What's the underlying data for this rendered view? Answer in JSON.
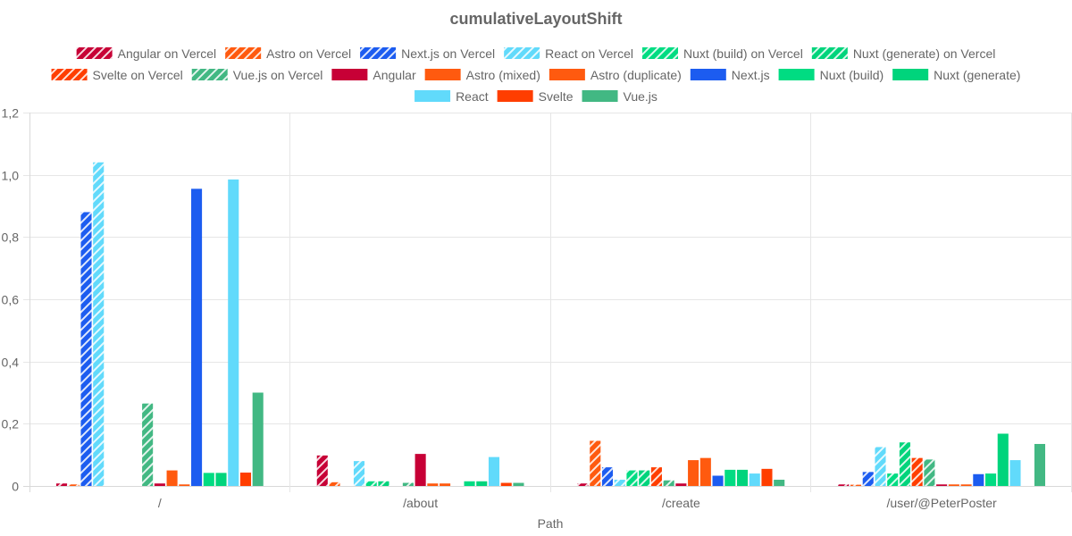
{
  "chart_data": {
    "type": "bar",
    "title": "cumulativeLayoutShift",
    "xlabel": "Path",
    "ylabel": "",
    "ylim": [
      0,
      1.2
    ],
    "yticks": [
      "0",
      "0,2",
      "0,4",
      "0,6",
      "0,8",
      "1,0",
      "1,2"
    ],
    "grid": true,
    "legend_position": "top",
    "categories": [
      "/",
      "/about",
      "/create",
      "/user/@PeterPoster"
    ],
    "series": [
      {
        "name": "Angular on Vercel",
        "color": "#c70036",
        "hatched": true,
        "values": [
          0.008,
          0.098,
          0.008,
          0.005
        ]
      },
      {
        "name": "Astro on Vercel",
        "color": "#ff5a0f",
        "hatched": true,
        "values": [
          0.005,
          0.012,
          0.145,
          0.004
        ]
      },
      {
        "name": "Next.js on Vercel",
        "color": "#1c5cf0",
        "hatched": true,
        "values": [
          0.88,
          0.0,
          0.06,
          0.045
        ]
      },
      {
        "name": "React on Vercel",
        "color": "#61dafb",
        "hatched": true,
        "values": [
          1.04,
          0.08,
          0.02,
          0.125
        ]
      },
      {
        "name": "Nuxt (build) on Vercel",
        "color": "#00dc82",
        "hatched": true,
        "values": [
          0.0,
          0.015,
          0.05,
          0.04
        ]
      },
      {
        "name": "Nuxt (generate) on Vercel",
        "color": "#00d47c",
        "hatched": true,
        "values": [
          0.0,
          0.015,
          0.05,
          0.14
        ]
      },
      {
        "name": "Svelte on Vercel",
        "color": "#ff3e00",
        "hatched": true,
        "values": [
          0.0,
          0.0,
          0.06,
          0.09
        ]
      },
      {
        "name": "Vue.js on Vercel",
        "color": "#42b883",
        "hatched": true,
        "values": [
          0.265,
          0.01,
          0.018,
          0.085
        ]
      },
      {
        "name": "Angular",
        "color": "#c70036",
        "hatched": false,
        "values": [
          0.008,
          0.103,
          0.008,
          0.005
        ]
      },
      {
        "name": "Astro (mixed)",
        "color": "#ff5a0f",
        "hatched": false,
        "values": [
          0.05,
          0.008,
          0.083,
          0.005
        ]
      },
      {
        "name": "Astro (duplicate)",
        "color": "#ff5a0f",
        "hatched": false,
        "values": [
          0.005,
          0.008,
          0.09,
          0.005
        ]
      },
      {
        "name": "Next.js",
        "color": "#1c5cf0",
        "hatched": false,
        "values": [
          0.955,
          0.0,
          0.033,
          0.038
        ]
      },
      {
        "name": "Nuxt (build)",
        "color": "#00dc82",
        "hatched": false,
        "values": [
          0.042,
          0.015,
          0.052,
          0.04
        ]
      },
      {
        "name": "Nuxt (generate)",
        "color": "#00d47c",
        "hatched": false,
        "values": [
          0.042,
          0.015,
          0.052,
          0.168
        ]
      },
      {
        "name": "React",
        "color": "#61dafb",
        "hatched": false,
        "values": [
          0.985,
          0.093,
          0.04,
          0.083
        ]
      },
      {
        "name": "Svelte",
        "color": "#ff3e00",
        "hatched": false,
        "values": [
          0.043,
          0.01,
          0.055,
          0.0
        ]
      },
      {
        "name": "Vue.js",
        "color": "#42b883",
        "hatched": false,
        "values": [
          0.3,
          0.01,
          0.02,
          0.135
        ]
      }
    ]
  }
}
